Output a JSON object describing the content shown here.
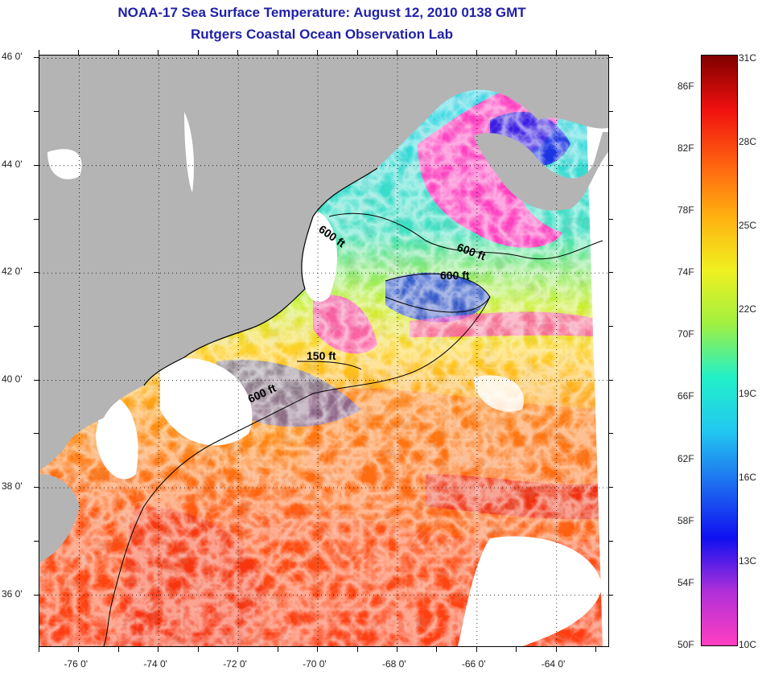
{
  "title": {
    "line1": "NOAA-17 Sea Surface Temperature:  August 12, 2010 0138 GMT",
    "line2": "Rutgers Coastal Ocean Observation Lab"
  },
  "axes": {
    "latitudes": [
      {
        "value": 46,
        "label": "46 0'"
      },
      {
        "value": 44,
        "label": "44 0'"
      },
      {
        "value": 42,
        "label": "42 0'"
      },
      {
        "value": 40,
        "label": "40 0'"
      },
      {
        "value": 38,
        "label": "38 0'"
      },
      {
        "value": 36,
        "label": "36 0'"
      }
    ],
    "longitudes": [
      {
        "value": -76,
        "label": "-76 0'"
      },
      {
        "value": -74,
        "label": "-74 0'"
      },
      {
        "value": -72,
        "label": "-72 0'"
      },
      {
        "value": -70,
        "label": "-70 0'"
      },
      {
        "value": -68,
        "label": "-68 0'"
      },
      {
        "value": -66,
        "label": "-66 0'"
      },
      {
        "value": -64,
        "label": "-64 0'"
      }
    ],
    "lat_range": [
      35.05,
      46.05
    ],
    "lon_range": [
      -77,
      -62.7
    ],
    "grid": "dotted"
  },
  "contour_labels": [
    "600 ft",
    "600 ft",
    "600 ft",
    "150 ft",
    "600 ft"
  ],
  "colorbar": {
    "fahrenheit": [
      "86F",
      "82F",
      "78F",
      "74F",
      "70F",
      "66F",
      "62F",
      "58F",
      "54F",
      "50F"
    ],
    "celsius": [
      "31C",
      "28C",
      "25C",
      "22C",
      "19C",
      "16C",
      "13C",
      "10C"
    ],
    "range_f": [
      50,
      88
    ],
    "colors": [
      "#ff3fc0",
      "#b030d8",
      "#1010f0",
      "#1e6cf0",
      "#22c8f0",
      "#22f0c8",
      "#a0f040",
      "#f0f020",
      "#ffb010",
      "#ff6010",
      "#f01010",
      "#800000"
    ]
  },
  "legend_colors": {
    "land": "#b4b4b4",
    "cloud": "#ffffff"
  }
}
